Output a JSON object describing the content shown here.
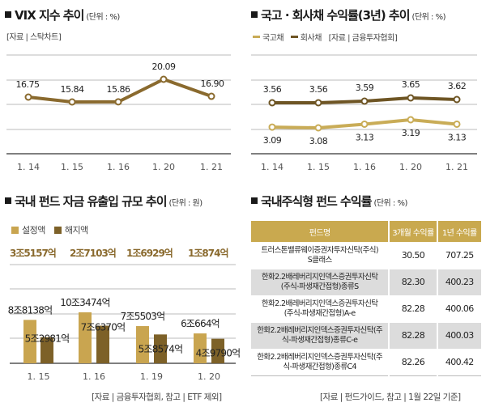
{
  "vix": {
    "title": "VIX 지수 추이",
    "unit": "(단위 : %)",
    "source": "[자료 | 스탁차트]"
  },
  "bond": {
    "title": "국고 · 회사채 수익률(3년) 추이",
    "unit": "(단위 : %)",
    "legend": [
      "국고채",
      "회사채"
    ],
    "source": "[자료 | 금융투자협회]"
  },
  "flow": {
    "title": "국내 펀드 자금 유출입 규모 추이",
    "unit": "(단위 : 원)",
    "legend": [
      "설정액",
      "해지액"
    ],
    "totals": [
      "3조5157억",
      "2조7103억",
      "1조6929억",
      "1조874억"
    ],
    "source": "[자료 | 금융투자협회, 참고 | ETF 제외]"
  },
  "funds": {
    "title": "국내주식형 펀드 수익률",
    "unit": "(단위 : %)",
    "headers": [
      "펀드명",
      "3개월 수익률",
      "1년 수익률"
    ],
    "rows": [
      {
        "name1": "트러스톤밸류웨이증권자투자신탁(주식)",
        "name2": "S클래스",
        "m3": "30.50",
        "y1": "707.25"
      },
      {
        "name1": "한화2.2배레버리지인덱스증권투자신탁",
        "name2": "(주식-파생재간접형)종류S",
        "m3": "82.30",
        "y1": "400.23"
      },
      {
        "name1": "한화2.2배레버리지인덱스증권투자신탁",
        "name2": "(주식-파생재간접형)A-e",
        "m3": "82.28",
        "y1": "400.06"
      },
      {
        "name1": "한화2.2배레버리지인덱스증권투자신탁(주",
        "name2": "식-파생재간접형)종류C-e",
        "m3": "82.28",
        "y1": "400.03"
      },
      {
        "name1": "한화2.2배레버리지인덱스증권투자신탁(주",
        "name2": "식-파생재간접형)종류C4",
        "m3": "82.26",
        "y1": "400.42"
      }
    ],
    "source": "[자료 | 펀드가이드, 참고 | 1월 22일 기준]"
  },
  "colors": {
    "vix_line": "#8a6a2e",
    "govt_line": "#c9ac57",
    "corp_line": "#6e5524",
    "set_bar": "#c9a550",
    "redeem_bar": "#7d6128",
    "grid": "#bbbbbb",
    "axis": "#555555",
    "table_header": "#c9a94f"
  },
  "chart_data": [
    {
      "type": "line",
      "title": "VIX 지수 추이",
      "ylabel": "%",
      "categories": [
        "1. 14",
        "1. 15",
        "1. 16",
        "1. 20",
        "1. 21"
      ],
      "series": [
        {
          "name": "VIX",
          "values": [
            16.75,
            15.84,
            15.86,
            20.09,
            16.9
          ],
          "labels": [
            "16.75",
            "15.84",
            "15.86",
            "20.09",
            "16.90"
          ]
        }
      ],
      "ylim": [
        0,
        24
      ],
      "grid": true
    },
    {
      "type": "line",
      "title": "국고 · 회사채 수익률(3년) 추이",
      "ylabel": "%",
      "categories": [
        "1. 14",
        "1. 15",
        "1. 16",
        "1. 20",
        "1. 21"
      ],
      "series": [
        {
          "name": "회사채",
          "values": [
            3.56,
            3.56,
            3.59,
            3.65,
            3.62
          ],
          "labels": [
            "3.56",
            "3.56",
            "3.59",
            "3.65",
            "3.62"
          ]
        },
        {
          "name": "국고채",
          "values": [
            3.09,
            3.08,
            3.13,
            3.19,
            3.13
          ],
          "labels": [
            "3.09",
            "3.08",
            "3.13",
            "3.19",
            "3.13"
          ]
        }
      ],
      "legend": "top-left",
      "grid": true
    },
    {
      "type": "bar",
      "title": "국내 펀드 자금 유출입 규모 추이",
      "ylabel": "억원",
      "categories": [
        "1. 15",
        "1. 16",
        "1. 19",
        "1. 20"
      ],
      "series": [
        {
          "name": "설정액",
          "values": [
            88138,
            103474,
            75503,
            60664
          ],
          "labels": [
            "8조8138억",
            "10조3474억",
            "7조5503억",
            "6조664억"
          ]
        },
        {
          "name": "해지액",
          "values": [
            52981,
            76370,
            58574,
            49790
          ],
          "labels": [
            "5조2981억",
            "7조6370억",
            "5조8574억",
            "4조9790억"
          ]
        }
      ],
      "net_inflow_labels": [
        "3조5157억",
        "2조7103억",
        "1조6929억",
        "1조874억"
      ],
      "legend": "top-left",
      "grid": true
    },
    {
      "type": "table",
      "title": "국내주식형 펀드 수익률",
      "columns": [
        "펀드명",
        "3개월 수익률",
        "1년 수익률"
      ],
      "rows": [
        [
          "트러스톤밸류웨이증권자투자신탁(주식)S클래스",
          30.5,
          707.25
        ],
        [
          "한화2.2배레버리지인덱스증권투자신탁(주식-파생재간접형)종류S",
          82.3,
          400.23
        ],
        [
          "한화2.2배레버리지인덱스증권투자신탁(주식-파생재간접형)A-e",
          82.28,
          400.06
        ],
        [
          "한화2.2배레버리지인덱스증권투자신탁(주식-파생재간접형)종류C-e",
          82.28,
          400.03
        ],
        [
          "한화2.2배레버리지인덱스증권투자신탁(주식-파생재간접형)종류C4",
          82.26,
          400.42
        ]
      ]
    }
  ]
}
